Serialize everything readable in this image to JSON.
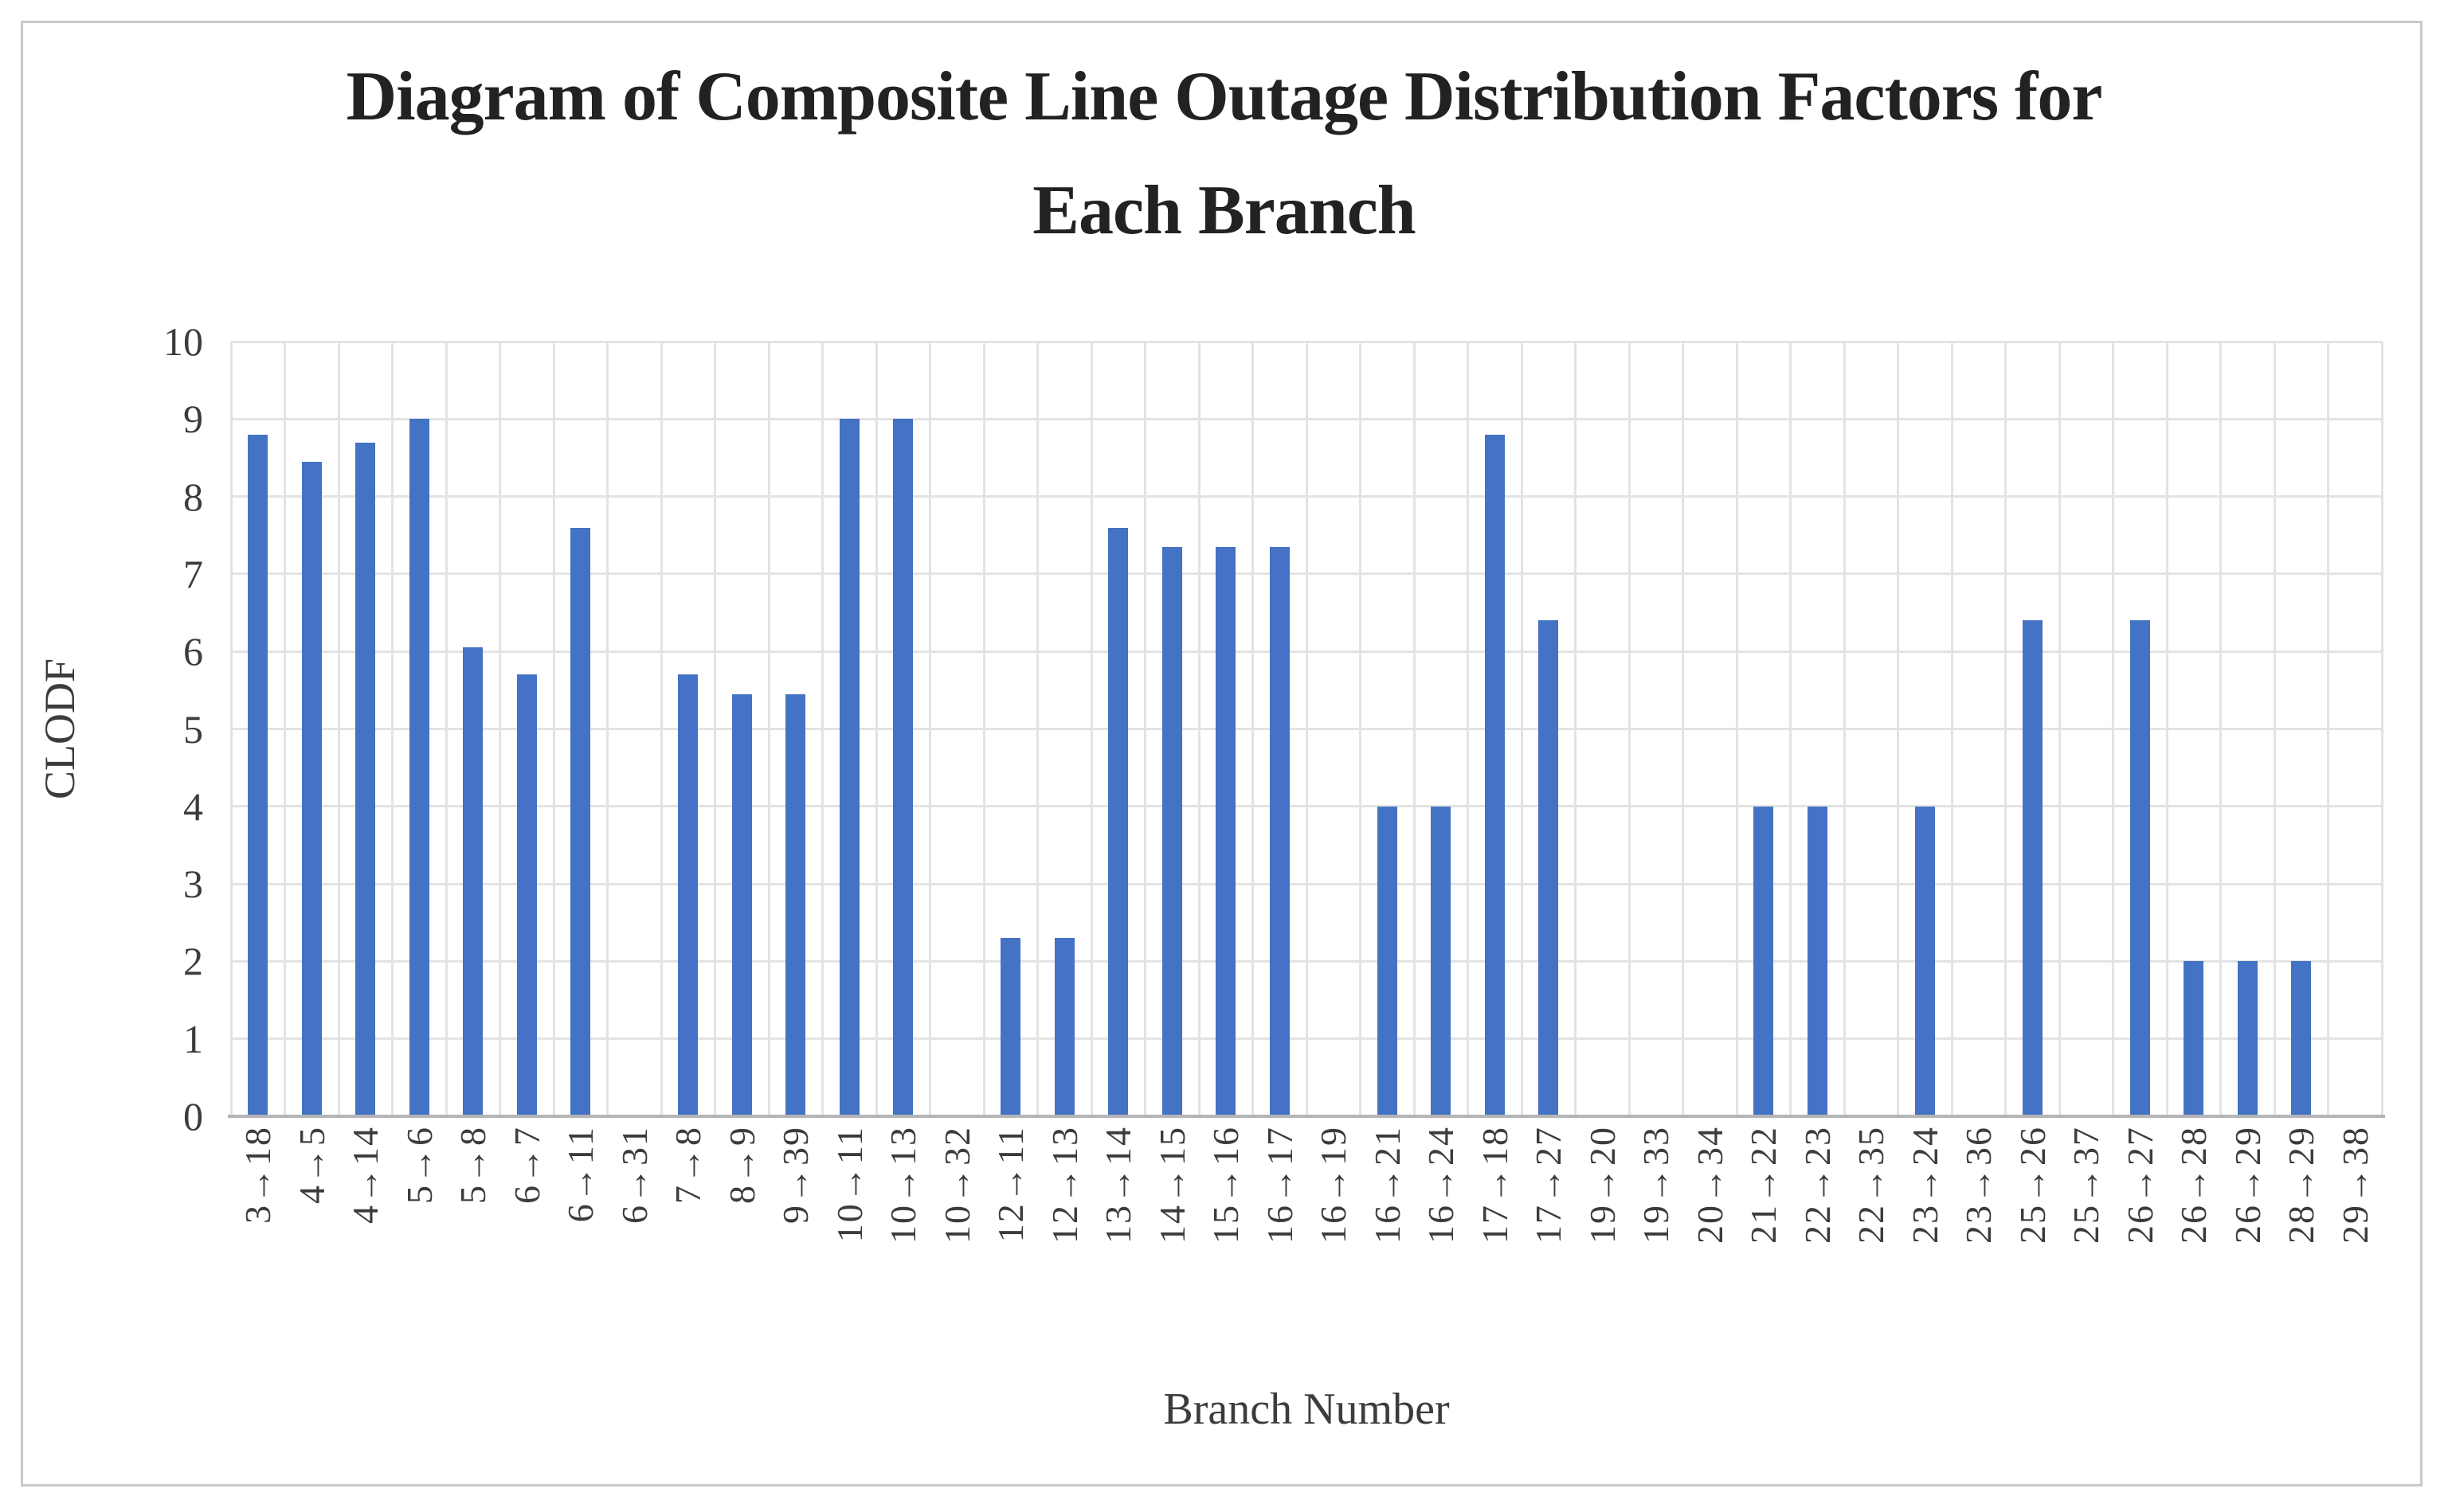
{
  "figure": {
    "title_lines": [
      "Diagram of Composite Line Outage Distribution Factors for",
      "Each Branch"
    ]
  },
  "chart_data": {
    "type": "bar",
    "title": "Diagram of Composite Line Outage Distribution Factors for Each Branch",
    "xlabel": "Branch Number",
    "ylabel": "CLODF",
    "ylim": [
      0,
      10
    ],
    "ytick_step": 1,
    "ytick_labels": [
      "0",
      "1",
      "2",
      "3",
      "4",
      "5",
      "6",
      "7",
      "8",
      "9",
      "10"
    ],
    "grid": "on",
    "legend_position": "none",
    "categories": [
      "3→18",
      "4→5",
      "4→14",
      "5→6",
      "5→8",
      "6→7",
      "6→11",
      "6→31",
      "7→8",
      "8→9",
      "9→39",
      "10→11",
      "10→13",
      "10→32",
      "12→11",
      "12→13",
      "13→14",
      "14→15",
      "15→16",
      "16→17",
      "16→19",
      "16→21",
      "16→24",
      "17→18",
      "17→27",
      "19→20",
      "19→33",
      "20→34",
      "21→22",
      "22→23",
      "22→35",
      "23→24",
      "23→36",
      "25→26",
      "25→37",
      "26→27",
      "26→28",
      "26→29",
      "28→29",
      "29→38"
    ],
    "values": [
      8.8,
      8.45,
      8.7,
      9.0,
      6.05,
      5.7,
      7.6,
      0,
      5.7,
      5.45,
      5.45,
      9.0,
      9.0,
      0,
      2.3,
      2.3,
      7.6,
      7.35,
      7.35,
      7.35,
      0,
      4.0,
      4.0,
      8.8,
      6.4,
      0,
      0,
      0,
      4.0,
      4.0,
      0,
      4.0,
      0,
      6.4,
      0,
      6.4,
      2.0,
      2.0,
      2.0,
      0
    ],
    "bar_color": "#4472C4",
    "gridline_color": "#E3E3E3",
    "axis_line_color": "#B5B5B5",
    "text_color": "#3C3C3C",
    "title_color": "#222222"
  }
}
